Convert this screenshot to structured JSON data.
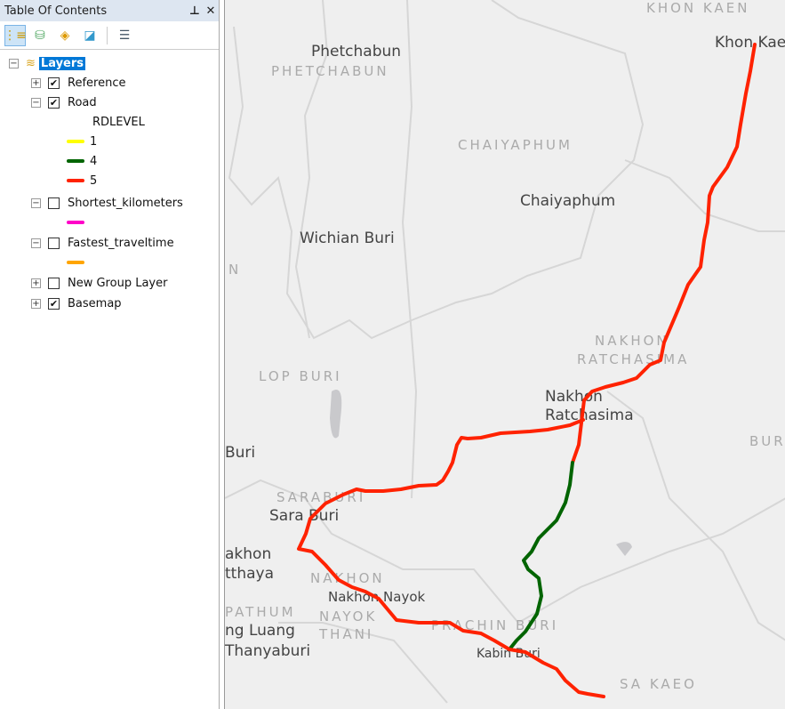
{
  "toc": {
    "title": "Table Of Contents",
    "pin_icon": "pin-icon",
    "close_icon": "close-icon",
    "toolbar": [
      "list-by-drawing-order-icon",
      "list-by-source-icon",
      "list-by-visibility-icon",
      "list-by-selection-icon",
      "options-icon"
    ],
    "root": {
      "label": "Layers",
      "expanded": true
    },
    "layers": [
      {
        "label": "Reference",
        "checked": true,
        "expanded": false,
        "check": "✔"
      },
      {
        "label": "Road",
        "checked": true,
        "expanded": true,
        "check": "✔",
        "field": "RDLEVEL",
        "classes": [
          {
            "label": "1",
            "color": "#ffff00"
          },
          {
            "label": "4",
            "color": "#006400"
          },
          {
            "label": "5",
            "color": "#ff2200"
          }
        ]
      },
      {
        "label": "Shortest_kilometers",
        "checked": false,
        "expanded": true,
        "symbol_color": "#ff00c8",
        "check": ""
      },
      {
        "label": "Fastest_traveltime",
        "checked": false,
        "expanded": true,
        "symbol_color": "#ffa500",
        "check": ""
      },
      {
        "label": "New Group Layer",
        "checked": false,
        "expanded": false,
        "check": ""
      },
      {
        "label": "Basemap",
        "checked": true,
        "expanded": false,
        "check": "✔"
      }
    ]
  },
  "map": {
    "cities": [
      "Phetchabun",
      "Wichian Buri",
      "Chaiyaphum",
      "Khon Kaen",
      "Nakhon Ratchasima",
      "Sara Buri",
      "Nakhon Nayok",
      "Kabin Buri",
      "Buri",
      "akhon",
      "tthaya",
      "ng Luang",
      "Thanyaburi"
    ],
    "provinces": [
      "KHON KAEN",
      "PHETCHABUN",
      "CHAIYAPHUM",
      "NAKHON",
      "RATCHASIMA",
      "LOP BURI",
      "SARABURI",
      "NAKHON",
      "NAYOK",
      "PRACHIN BURI",
      "SA KAEO",
      "BUR",
      "N",
      "PATHUM",
      "THANI"
    ]
  }
}
